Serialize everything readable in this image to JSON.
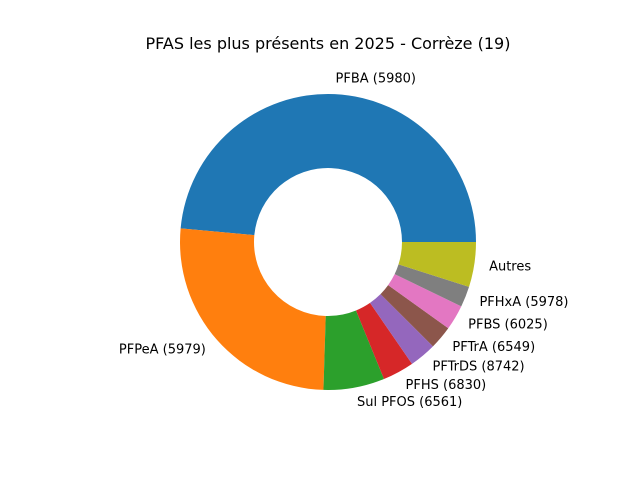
{
  "chart_data": {
    "type": "pie",
    "variant": "donut",
    "title": "PFAS les plus présents en 2025 - Corrèze (19)",
    "start_angle_deg": 0,
    "direction": "counterclockwise",
    "slices": [
      {
        "label": "PFBA (5980)",
        "value": 49.5,
        "color": "#1f77b4"
      },
      {
        "label": "PFPeA (5979)",
        "value": 26.5,
        "color": "#ff7f0e"
      },
      {
        "label": "Sul PFOS (6561)",
        "value": 6.8,
        "color": "#2ca02c"
      },
      {
        "label": "PFHS (6830)",
        "value": 3.5,
        "color": "#d62728"
      },
      {
        "label": "PFTrDS (8742)",
        "value": 3.0,
        "color": "#9467bd"
      },
      {
        "label": "PFTrA (6549)",
        "value": 2.6,
        "color": "#8c564b"
      },
      {
        "label": "PFBS (6025)",
        "value": 2.8,
        "color": "#e377c2"
      },
      {
        "label": "PFHxA (5978)",
        "value": 2.3,
        "color": "#7f7f7f"
      },
      {
        "label": "Autres",
        "value": 5.0,
        "color": "#bcbd22"
      }
    ]
  }
}
